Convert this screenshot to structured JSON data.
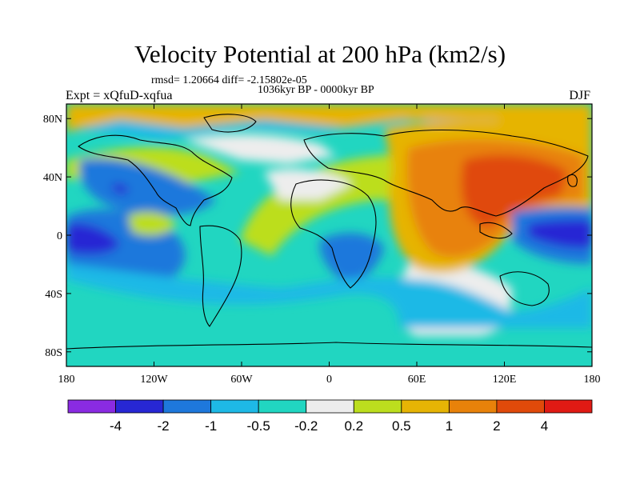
{
  "title": "Velocity Potential at 200 hPa (km2/s)",
  "stats": "rmsd= 1.20664 diff= -2.15802e-05",
  "period": "1036kyr BP - 0000kyr BP",
  "experiment": "Expt = xQfuD-xqfua",
  "season": "DJF",
  "map": {
    "projection": "cylindrical equidistant",
    "lon_range": [
      -180,
      180
    ],
    "lat_range": [
      -90,
      90
    ],
    "y_ticks": [
      "80N",
      "40N",
      "0",
      "40S",
      "80S"
    ],
    "x_ticks": [
      "180",
      "120W",
      "60W",
      "0",
      "60E",
      "120E",
      "180"
    ]
  },
  "colorbar": {
    "labels": [
      "-4",
      "-2",
      "-1",
      "-0.5",
      "-0.2",
      "0.2",
      "0.5",
      "1",
      "2",
      "4"
    ],
    "colors": [
      "#8A2BE2",
      "#2727D4",
      "#1E78DC",
      "#1EB9E6",
      "#21D6C1",
      "#EDEDED",
      "#BCDE1E",
      "#E6B405",
      "#E8820A",
      "#E04A0A",
      "#E01A14"
    ]
  }
}
